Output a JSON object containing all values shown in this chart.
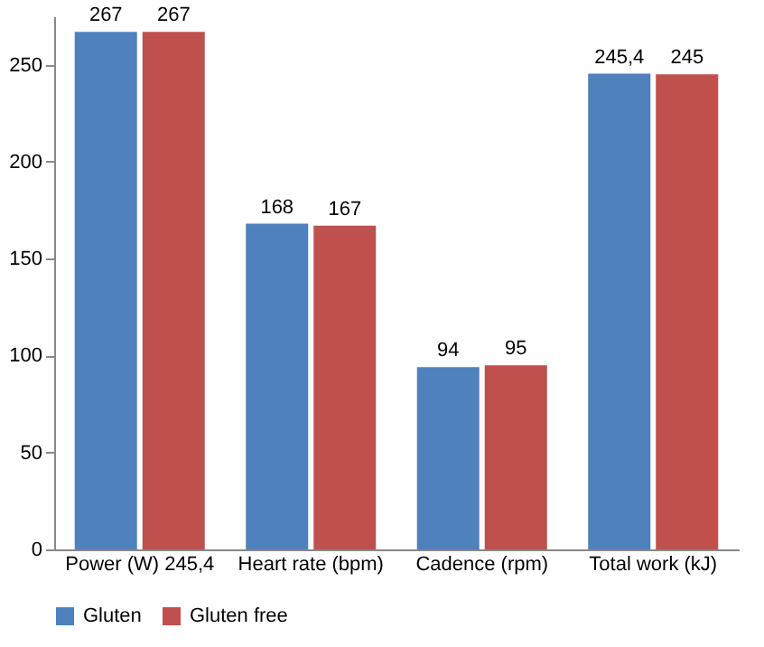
{
  "chart_data": {
    "type": "bar",
    "categories": [
      "Power (W) 245,4",
      "Heart rate (bpm)",
      "Cadence (rpm)",
      "Total work (kJ)"
    ],
    "series": [
      {
        "name": "Gluten",
        "color": "#4f81bd",
        "values": [
          267,
          168,
          94,
          245.4
        ],
        "value_labels": [
          "267",
          "168",
          "94",
          "245,4"
        ]
      },
      {
        "name": "Gluten free",
        "color": "#c0504d",
        "values": [
          267,
          167,
          95,
          245
        ],
        "value_labels": [
          "267",
          "167",
          "95",
          "245"
        ]
      }
    ],
    "ylim": [
      0,
      275
    ],
    "yticks": [
      0,
      50,
      100,
      150,
      200,
      250
    ],
    "grid": false,
    "legend": "bottom"
  }
}
